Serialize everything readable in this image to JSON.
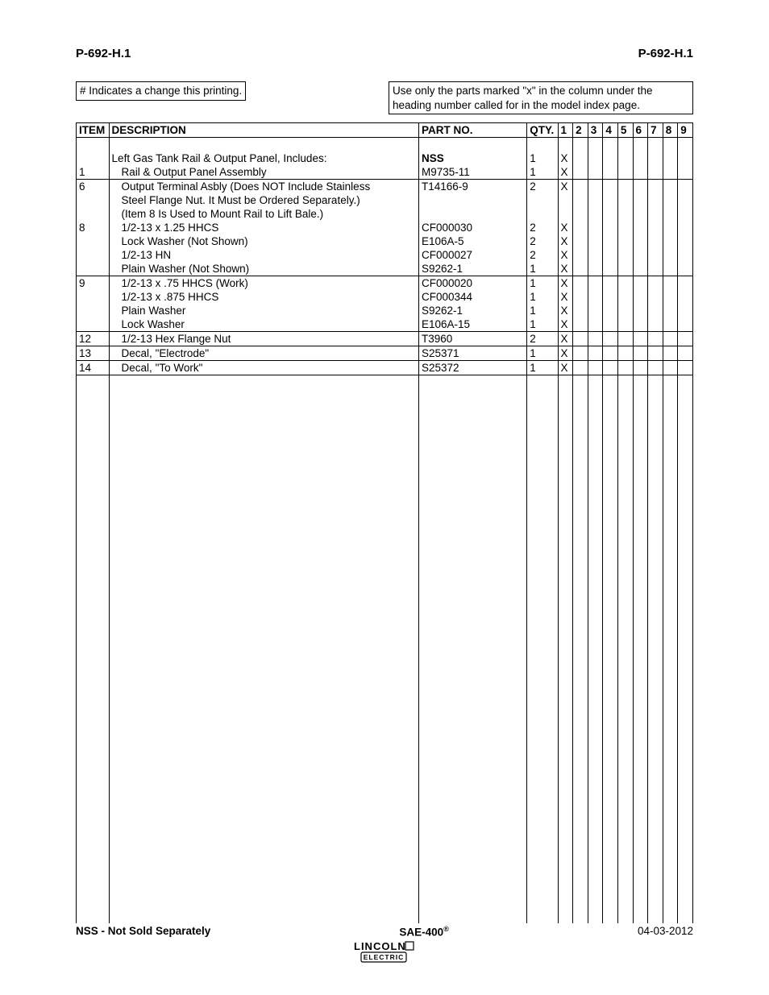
{
  "header": {
    "left": "P-692-H.1",
    "right": "P-692-H.1"
  },
  "notes": {
    "left": "# Indicates a change this printing.",
    "right": "Use only the parts marked \"x\" in the column under the heading number called for in the model index page."
  },
  "columns": {
    "item": "ITEM",
    "desc": "DESCRIPTION",
    "part": "PART NO.",
    "qty": "QTY.",
    "nums": [
      "1",
      "2",
      "3",
      "4",
      "5",
      "6",
      "7",
      "8",
      "9"
    ]
  },
  "rows": [
    {
      "sep": false,
      "blank": true,
      "item": "",
      "desc": "",
      "part": "",
      "qty": "",
      "marks": [
        "",
        "",
        "",
        "",
        "",
        "",
        "",
        "",
        ""
      ]
    },
    {
      "sep": false,
      "item": "",
      "desc": "Left Gas Tank Rail & Output Panel, Includes:",
      "part": "NSS",
      "part_bold": true,
      "qty": "1",
      "marks": [
        "X",
        "",
        "",
        "",
        "",
        "",
        "",
        "",
        ""
      ]
    },
    {
      "sep": false,
      "item": "1",
      "indent": true,
      "desc": "Rail & Output Panel Assembly",
      "part": "M9735-11",
      "qty": "1",
      "marks": [
        "X",
        "",
        "",
        "",
        "",
        "",
        "",
        "",
        ""
      ]
    },
    {
      "sep": true,
      "item": "6",
      "indent": true,
      "desc": "Output Terminal Asbly (Does NOT Include Stainless",
      "part": "T14166-9",
      "qty": "2",
      "marks": [
        "X",
        "",
        "",
        "",
        "",
        "",
        "",
        "",
        ""
      ]
    },
    {
      "sep": false,
      "item": "",
      "indent": true,
      "desc": "Steel Flange Nut. It Must be Ordered Separately.)",
      "part": "",
      "qty": "",
      "marks": [
        "",
        "",
        "",
        "",
        "",
        "",
        "",
        "",
        ""
      ]
    },
    {
      "sep": false,
      "item": "",
      "indent": true,
      "desc": "(Item 8 Is Used to Mount Rail to Lift Bale.)",
      "part": "",
      "qty": "",
      "marks": [
        "",
        "",
        "",
        "",
        "",
        "",
        "",
        "",
        ""
      ]
    },
    {
      "sep": false,
      "item": "8",
      "indent": true,
      "desc": "1/2-13 x 1.25 HHCS",
      "part": "CF000030",
      "qty": "2",
      "marks": [
        "X",
        "",
        "",
        "",
        "",
        "",
        "",
        "",
        ""
      ]
    },
    {
      "sep": false,
      "item": "",
      "indent": true,
      "desc": "Lock Washer (Not Shown)",
      "part": "E106A-5",
      "qty": "2",
      "marks": [
        "X",
        "",
        "",
        "",
        "",
        "",
        "",
        "",
        ""
      ]
    },
    {
      "sep": false,
      "item": "",
      "indent": true,
      "desc": "1/2-13 HN",
      "part": "CF000027",
      "qty": "2",
      "marks": [
        "X",
        "",
        "",
        "",
        "",
        "",
        "",
        "",
        ""
      ]
    },
    {
      "sep": false,
      "item": "",
      "indent": true,
      "desc": "Plain Washer (Not Shown)",
      "part": "S9262-1",
      "qty": "1",
      "marks": [
        "X",
        "",
        "",
        "",
        "",
        "",
        "",
        "",
        ""
      ]
    },
    {
      "sep": true,
      "item": "9",
      "indent": true,
      "desc": "1/2-13 x .75 HHCS (Work)",
      "part": "CF000020",
      "qty": "1",
      "marks": [
        "X",
        "",
        "",
        "",
        "",
        "",
        "",
        "",
        ""
      ]
    },
    {
      "sep": false,
      "item": "",
      "indent": true,
      "desc": "1/2-13 x .875 HHCS",
      "part": "CF000344",
      "qty": "1",
      "marks": [
        "X",
        "",
        "",
        "",
        "",
        "",
        "",
        "",
        ""
      ]
    },
    {
      "sep": false,
      "item": "",
      "indent": true,
      "desc": "Plain Washer",
      "part": "S9262-1",
      "qty": "1",
      "marks": [
        "X",
        "",
        "",
        "",
        "",
        "",
        "",
        "",
        ""
      ]
    },
    {
      "sep": false,
      "item": "",
      "indent": true,
      "desc": "Lock Washer",
      "part": "E106A-15",
      "qty": "1",
      "marks": [
        "X",
        "",
        "",
        "",
        "",
        "",
        "",
        "",
        ""
      ]
    },
    {
      "sep": true,
      "item": "12",
      "indent": true,
      "desc": "1/2-13 Hex Flange Nut",
      "part": "T3960",
      "qty": "2",
      "marks": [
        "X",
        "",
        "",
        "",
        "",
        "",
        "",
        "",
        ""
      ]
    },
    {
      "sep": true,
      "item": "13",
      "indent": true,
      "desc": "Decal, \"Electrode\"",
      "part": "S25371",
      "qty": "1",
      "marks": [
        "X",
        "",
        "",
        "",
        "",
        "",
        "",
        "",
        ""
      ]
    },
    {
      "sep": true,
      "item": "14",
      "indent": true,
      "desc": "Decal, \"To Work\"",
      "part": "S25372",
      "qty": "1",
      "marks": [
        "X",
        "",
        "",
        "",
        "",
        "",
        "",
        "",
        ""
      ]
    }
  ],
  "footer": {
    "left": "NSS - Not Sold Separately",
    "center": "SAE-400",
    "right": "04-03-2012"
  },
  "logo": {
    "top": "LINCOLN",
    "bottom": "ELECTRIC"
  },
  "style": {
    "text_color": "#000000",
    "border_color": "#000000",
    "background": "#ffffff",
    "font_size_body": 13.5,
    "font_size_header": 15
  }
}
